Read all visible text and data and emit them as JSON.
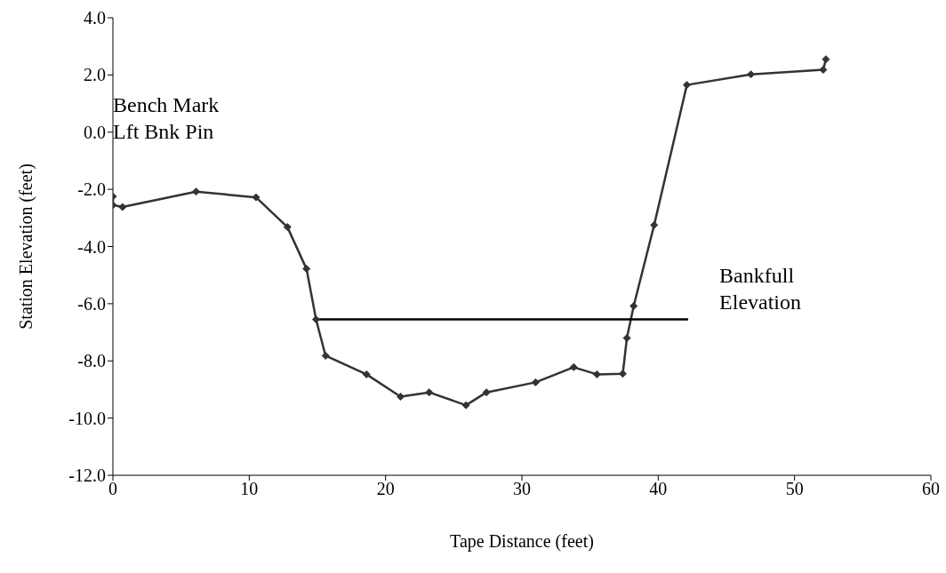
{
  "chart_data": {
    "type": "line",
    "xlabel": "Tape Distance (feet)",
    "ylabel": "Station Elevation (feet)",
    "xlim": [
      0,
      60
    ],
    "xticks": [
      0,
      10,
      20,
      30,
      40,
      50,
      60
    ],
    "ylim": [
      -12,
      4
    ],
    "yticks": [
      {
        "value": -12,
        "label": "-12.0"
      },
      {
        "value": -10,
        "label": "-10.0"
      },
      {
        "value": -8,
        "label": "-8.0"
      },
      {
        "value": -6,
        "label": "-6.0"
      },
      {
        "value": -4,
        "label": "-4.0"
      },
      {
        "value": -2,
        "label": "-2.0"
      },
      {
        "value": 0,
        "label": "0.0"
      },
      {
        "value": 2,
        "label": "2.0"
      },
      {
        "value": 4,
        "label": "4.0"
      }
    ],
    "series": [
      {
        "color": "#333333",
        "marker": "diamond",
        "x": [
          0,
          0,
          0.7,
          6.1,
          10.5,
          12.8,
          14.2,
          14.9,
          15.6,
          18.6,
          21.1,
          23.2,
          25.9,
          27.4,
          31,
          33.8,
          35.5,
          37.4,
          37.7,
          38.2,
          39.7,
          42.1,
          46.8,
          52.1,
          52.3
        ],
        "values": [
          -2.25,
          -2.55,
          -2.62,
          -2.08,
          -2.28,
          -3.32,
          -4.78,
          -6.55,
          -7.82,
          -8.47,
          -9.25,
          -9.1,
          -9.55,
          -9.1,
          -8.75,
          -8.22,
          -8.47,
          -8.45,
          -7.2,
          -6.08,
          -3.25,
          1.65,
          2.02,
          2.18,
          2.55
        ]
      },
      {
        "color": "#000000",
        "marker": "none",
        "x": [
          14.9,
          42.2
        ],
        "values": [
          -6.55,
          -6.55
        ]
      }
    ],
    "annotations": [
      {
        "text": "Bench Mark\nLft Bnk Pin",
        "x": 0,
        "y": -2.25
      },
      {
        "text": "Bankfull\nElevation",
        "x": 42.2,
        "y": -6.55
      }
    ]
  }
}
